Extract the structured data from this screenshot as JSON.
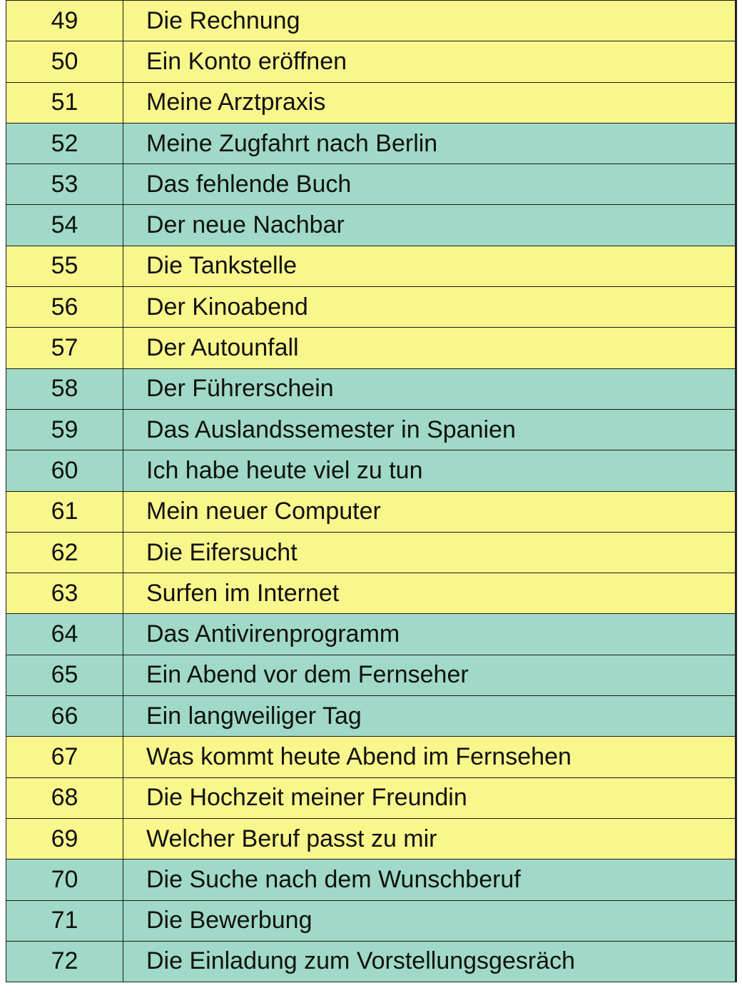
{
  "table": {
    "rows": [
      [
        49,
        "Die Rechnung"
      ],
      [
        50,
        "Ein Konto eröffnen"
      ],
      [
        51,
        "Meine Arztpraxis"
      ],
      [
        52,
        "Meine Zugfahrt nach Berlin"
      ],
      [
        53,
        "Das fehlende Buch"
      ],
      [
        54,
        "Der neue Nachbar"
      ],
      [
        55,
        "Die Tankstelle"
      ],
      [
        56,
        "Der Kinoabend"
      ],
      [
        57,
        "Der Autounfall"
      ],
      [
        58,
        "Der Führerschein"
      ],
      [
        59,
        "Das Auslandssemester in Spanien"
      ],
      [
        60,
        "Ich habe heute viel zu tun"
      ],
      [
        61,
        "Mein neuer Computer"
      ],
      [
        62,
        "Die Eifersucht"
      ],
      [
        63,
        "Surfen im Internet"
      ],
      [
        64,
        "Das Antivirenprogramm"
      ],
      [
        65,
        "Ein Abend vor dem Fernseher"
      ],
      [
        66,
        "Ein langweiliger Tag"
      ],
      [
        67,
        "Was kommt heute Abend im Fernsehen"
      ],
      [
        68,
        "Die Hochzeit meiner Freundin"
      ],
      [
        69,
        "Welcher Beruf passt zu mir"
      ],
      [
        70,
        "Die Suche nach dem Wunschberuf"
      ],
      [
        71,
        "Die Bewerbung"
      ],
      [
        72,
        "Die Einladung zum Vorstellungsgesräch"
      ]
    ]
  }
}
